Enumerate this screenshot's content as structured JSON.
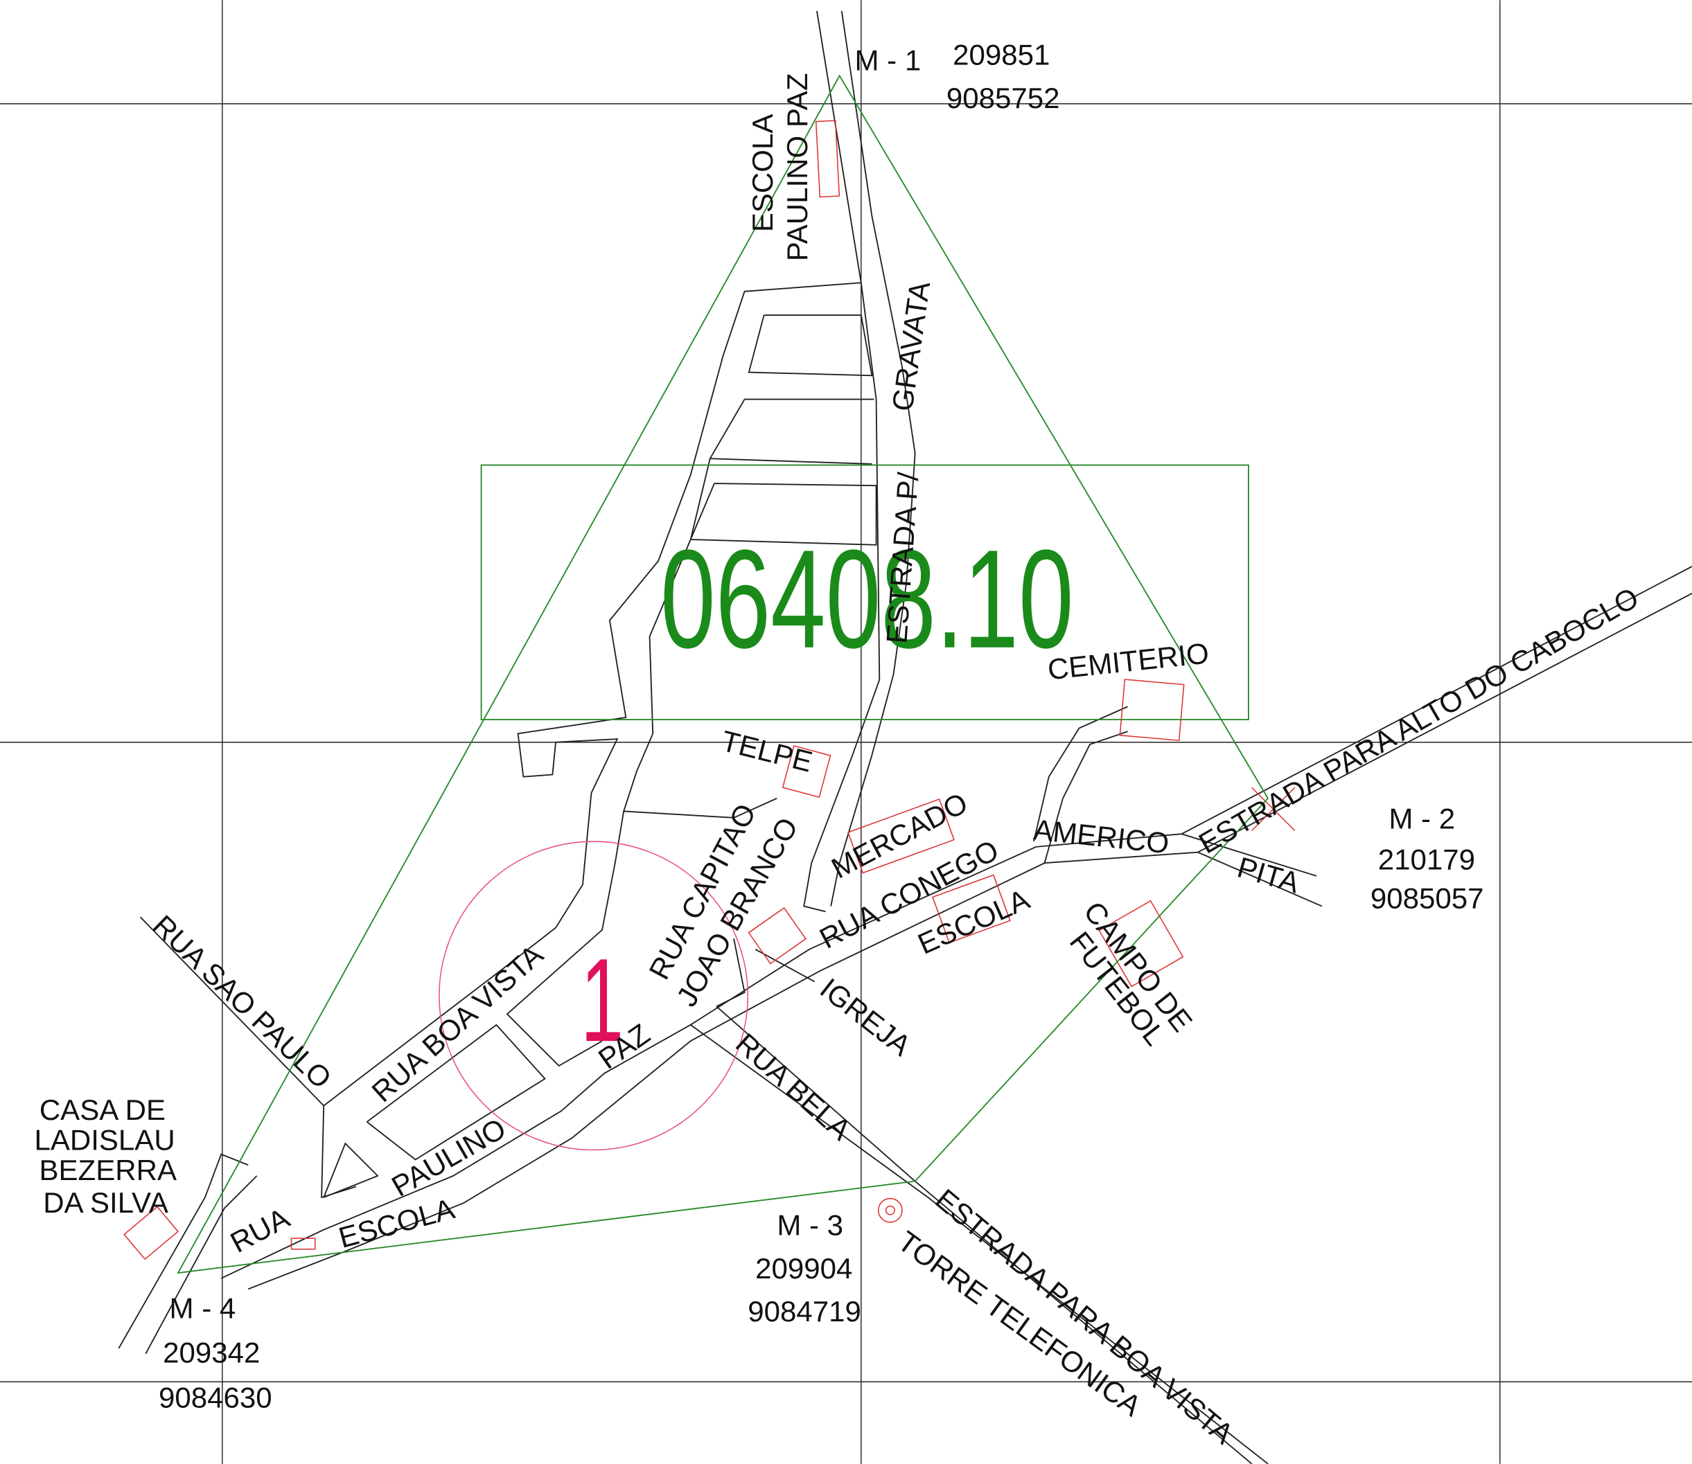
{
  "code": "06408.10",
  "section": "1",
  "markers": [
    {
      "label": "M - 1",
      "x": "209851",
      "y": "9085752"
    },
    {
      "label": "M - 2",
      "x": "210179",
      "y": "9085057"
    },
    {
      "label": "M - 3",
      "x": "209904",
      "y": "9084719"
    },
    {
      "label": "M - 4",
      "x": "209342",
      "y": "9084630"
    }
  ],
  "labels": [
    "ESCOLA",
    "PAULINO PAZ",
    "ESTRADA P/",
    "GRAVATA",
    "CEMITERIO",
    "ESTRADA PARA ALTO DO CABOCLO",
    "TELPE",
    "RUA CAPITAO",
    "JOAO BRANCO",
    "MERCADO",
    "RUA CONEGO",
    "AMERICO",
    "PITA",
    "ESCOLA",
    "CAMPO DE",
    "FUTEBOL",
    "IGREJA",
    "RUA BELA",
    "ESTRADA PARA BOA VISTA",
    "TORRE TELEFONICA",
    "RUA SAO PAULO",
    "RUA BOA VISTA",
    "PAZ",
    "PAULINO",
    "ESCOLA",
    "RUA",
    "CASA DE",
    "LADISLAU",
    "BEZERRA",
    "DA SILVA"
  ]
}
